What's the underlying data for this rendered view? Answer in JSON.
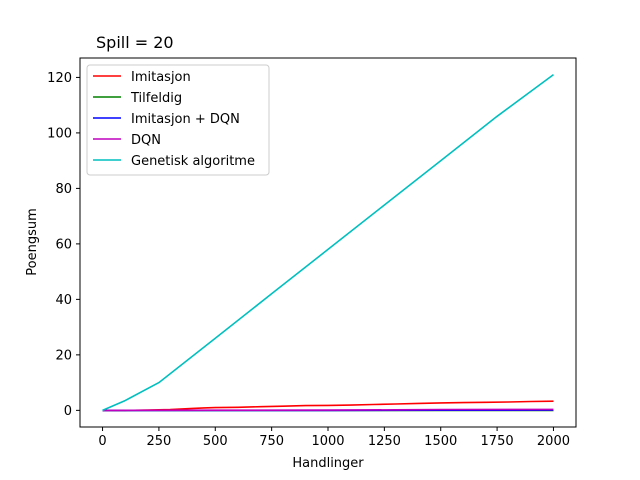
{
  "chart_data": {
    "type": "line",
    "title": "Spill = 20",
    "xlabel": "Handlinger",
    "ylabel": "Poengsum",
    "xlim": [
      -100,
      2100
    ],
    "ylim": [
      -6,
      127
    ],
    "xticks": [
      0,
      250,
      500,
      750,
      1000,
      1250,
      1500,
      1750,
      2000
    ],
    "yticks": [
      0,
      20,
      40,
      60,
      80,
      100,
      120
    ],
    "grid": false,
    "legend_position": "top-left",
    "series": [
      {
        "name": "Imitasjon",
        "color": "#ff0000",
        "x": [
          0,
          100,
          200,
          300,
          400,
          450,
          500,
          600,
          700,
          800,
          900,
          1000,
          1100,
          1200,
          1300,
          1400,
          1500,
          1600,
          1700,
          1800,
          1900,
          2000
        ],
        "y": [
          0,
          0,
          0.1,
          0.3,
          0.7,
          0.9,
          1.0,
          1.1,
          1.3,
          1.5,
          1.7,
          1.8,
          1.9,
          2.1,
          2.3,
          2.5,
          2.7,
          2.8,
          2.9,
          3.0,
          3.2,
          3.3
        ]
      },
      {
        "name": "Tilfeldig",
        "color": "#008000",
        "x": [
          0,
          500,
          1000,
          1500,
          2000
        ],
        "y": [
          0,
          0,
          0,
          0,
          0
        ]
      },
      {
        "name": "Imitasjon + DQN",
        "color": "#0000ff",
        "x": [
          0,
          500,
          1000,
          1500,
          2000
        ],
        "y": [
          0,
          0,
          0,
          0.05,
          0.1
        ]
      },
      {
        "name": "DQN",
        "color": "#bf00bf",
        "x": [
          0,
          500,
          1000,
          1300,
          1500,
          2000
        ],
        "y": [
          0,
          0.05,
          0.1,
          0.2,
          0.3,
          0.35
        ]
      },
      {
        "name": "Genetisk algoritme",
        "color": "#00bfbf",
        "x": [
          0,
          100,
          250,
          500,
          750,
          1000,
          1250,
          1500,
          1750,
          2000
        ],
        "y": [
          0,
          3.5,
          10,
          26,
          42,
          58,
          74,
          90,
          106,
          121
        ]
      }
    ]
  }
}
